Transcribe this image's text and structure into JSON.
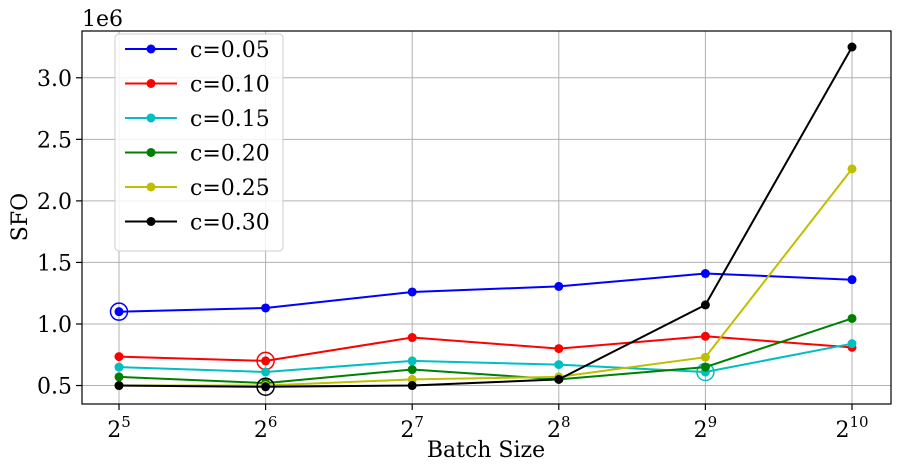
{
  "chart_data": {
    "type": "line",
    "xlabel": "Batch Size",
    "ylabel": "SFO",
    "offset_text": "1e6",
    "x_base": "2",
    "x_exponents": [
      "5",
      "6",
      "7",
      "8",
      "9",
      "10"
    ],
    "x": [
      32,
      64,
      128,
      256,
      512,
      1024
    ],
    "x_scale": "log2",
    "ylim": [
      0.35,
      3.38
    ],
    "y_ticks": [
      0.5,
      1.0,
      1.5,
      2.0,
      2.5,
      3.0
    ],
    "y_tick_labels": [
      "0.5",
      "1.0",
      "1.5",
      "2.0",
      "2.5",
      "3.0"
    ],
    "grid": true,
    "legend_position": "top-left",
    "series": [
      {
        "name": "c=0.05",
        "color": "#0000ff",
        "values": [
          1.1,
          1.13,
          1.26,
          1.305,
          1.41,
          1.36
        ],
        "highlight_index": 0
      },
      {
        "name": "c=0.10",
        "color": "#ff0000",
        "values": [
          0.735,
          0.7,
          0.89,
          0.8,
          0.9,
          0.81
        ],
        "highlight_index": 1
      },
      {
        "name": "c=0.15",
        "color": "#00bfbf",
        "values": [
          0.65,
          0.61,
          0.7,
          0.67,
          0.61,
          0.84
        ],
        "highlight_index": 4
      },
      {
        "name": "c=0.20",
        "color": "#008000",
        "values": [
          0.57,
          0.52,
          0.63,
          0.55,
          0.65,
          1.045
        ],
        "highlight_index": null
      },
      {
        "name": "c=0.25",
        "color": "#bfbf00",
        "values": [
          0.5,
          0.5,
          0.55,
          0.57,
          0.73,
          2.26
        ],
        "highlight_index": null
      },
      {
        "name": "c=0.30",
        "color": "#000000",
        "values": [
          0.5,
          0.49,
          0.5,
          0.55,
          1.155,
          3.25
        ],
        "highlight_index": 1
      }
    ]
  }
}
